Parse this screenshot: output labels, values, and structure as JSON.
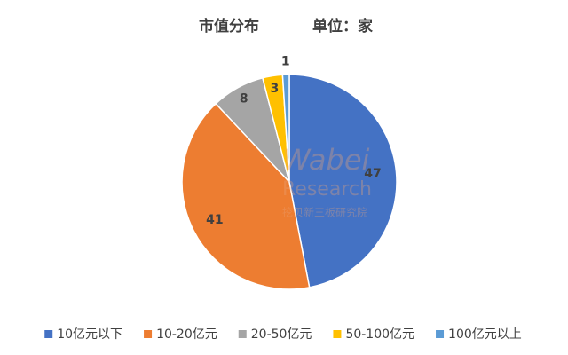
{
  "chart_data": {
    "type": "pie",
    "title": "市值分布",
    "unit": "单位：家",
    "watermark": [
      "Wabei",
      "Research",
      "挖贝新三板研究院"
    ],
    "categories": [
      "10亿元以下",
      "10-20亿元",
      "20-50亿元",
      "50-100亿元",
      "100亿元以上"
    ],
    "values": [
      47,
      41,
      8,
      3,
      1
    ],
    "colors": [
      "#4472c4",
      "#ed7d31",
      "#a5a5a5",
      "#ffc000",
      "#5b9bd5"
    ],
    "legend": "bottom"
  }
}
